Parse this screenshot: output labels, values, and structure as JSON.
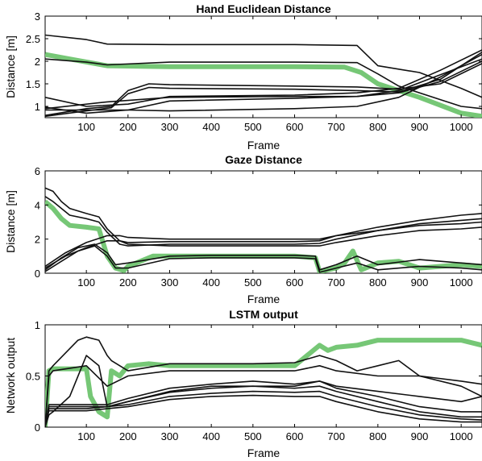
{
  "chart_data": [
    {
      "type": "line",
      "title": "Hand Euclidean Distance",
      "xlabel": "Frame",
      "ylabel": "Distance [m]",
      "xlim": [
        1,
        1050
      ],
      "ylim": [
        0.75,
        3
      ],
      "xticks": [
        100,
        200,
        300,
        400,
        500,
        600,
        700,
        800,
        900,
        1000
      ],
      "yticks": [
        1,
        1.5,
        2,
        2.5,
        3
      ],
      "ytick_labels": [
        "1",
        "1.5",
        "2",
        "2.5",
        "3"
      ],
      "grid": false,
      "highlight_color": "#76c776",
      "line_color": "#111111",
      "highlight": {
        "x": [
          1,
          60,
          150,
          300,
          600,
          720,
          760,
          800,
          900,
          1000,
          1050
        ],
        "y": [
          2.15,
          2.05,
          1.9,
          1.88,
          1.88,
          1.87,
          1.75,
          1.5,
          1.2,
          0.85,
          0.78
        ]
      },
      "series": [
        {
          "x": [
            1,
            100,
            150,
            300,
            600,
            750,
            800,
            900,
            1000,
            1050
          ],
          "y": [
            2.58,
            2.48,
            2.38,
            2.37,
            2.37,
            2.35,
            1.9,
            1.75,
            1.4,
            1.2
          ]
        },
        {
          "x": [
            1,
            100,
            150,
            300,
            600,
            750,
            800,
            850,
            950,
            1000,
            1050
          ],
          "y": [
            2.05,
            1.98,
            1.92,
            1.98,
            1.98,
            1.97,
            1.72,
            1.45,
            1.15,
            1.0,
            0.95
          ]
        },
        {
          "x": [
            1,
            100,
            160,
            200,
            250,
            300,
            600,
            750,
            850,
            950,
            1050
          ],
          "y": [
            0.8,
            0.95,
            1.0,
            1.35,
            1.5,
            1.48,
            1.45,
            1.43,
            1.38,
            1.5,
            1.95
          ]
        },
        {
          "x": [
            1,
            100,
            160,
            200,
            250,
            300,
            600,
            750,
            850,
            950,
            1050
          ],
          "y": [
            0.78,
            0.9,
            0.97,
            1.28,
            1.42,
            1.4,
            1.38,
            1.35,
            1.32,
            1.6,
            2.2
          ]
        },
        {
          "x": [
            1,
            100,
            200,
            300,
            600,
            750,
            850,
            950,
            1050
          ],
          "y": [
            1.2,
            1.0,
            1.05,
            1.22,
            1.25,
            1.3,
            1.4,
            1.8,
            2.25
          ]
        },
        {
          "x": [
            1,
            100,
            200,
            300,
            600,
            750,
            850,
            950,
            1050
          ],
          "y": [
            0.98,
            0.85,
            0.92,
            1.12,
            1.18,
            1.22,
            1.35,
            1.7,
            2.05
          ]
        },
        {
          "x": [
            1,
            150,
            300,
            600,
            750,
            850,
            950,
            1050
          ],
          "y": [
            0.95,
            1.1,
            1.2,
            1.22,
            1.22,
            1.3,
            1.55,
            2.0
          ]
        },
        {
          "x": [
            1,
            200,
            300,
            600,
            750,
            850,
            950,
            1050
          ],
          "y": [
            0.92,
            0.92,
            0.9,
            0.95,
            1.0,
            1.2,
            1.65,
            2.15
          ]
        }
      ]
    },
    {
      "type": "line",
      "title": "Gaze Distance",
      "xlabel": "Frame",
      "ylabel": "Distance [m]",
      "xlim": [
        1,
        1050
      ],
      "ylim": [
        0,
        6
      ],
      "xticks": [
        100,
        200,
        300,
        400,
        500,
        600,
        700,
        800,
        900,
        1000
      ],
      "yticks": [
        0,
        2,
        4,
        6
      ],
      "ytick_labels": [
        "0",
        "2",
        "4",
        "6"
      ],
      "grid": false,
      "highlight_color": "#76c776",
      "line_color": "#111111",
      "highlight": {
        "x": [
          1,
          20,
          40,
          60,
          100,
          130,
          150,
          170,
          190,
          200,
          230,
          260,
          300,
          400,
          500,
          600,
          650,
          660,
          700,
          720,
          740,
          760,
          800,
          850,
          900,
          1000,
          1050
        ],
        "y": [
          4.2,
          3.8,
          3.2,
          2.8,
          2.7,
          2.6,
          1.0,
          0.3,
          0.15,
          0.4,
          0.7,
          1.0,
          1.0,
          1.0,
          1.0,
          1.0,
          0.9,
          0.1,
          0.3,
          0.6,
          1.3,
          0.2,
          0.6,
          0.7,
          0.3,
          0.5,
          0.4
        ]
      },
      "series": [
        {
          "x": [
            1,
            20,
            40,
            60,
            100,
            130,
            150,
            180,
            200,
            300,
            400,
            500,
            600,
            660,
            700,
            800,
            900,
            1000,
            1050
          ],
          "y": [
            5.0,
            4.8,
            4.2,
            3.8,
            3.5,
            3.3,
            2.6,
            1.9,
            1.8,
            1.85,
            1.85,
            1.85,
            1.85,
            1.9,
            2.2,
            2.7,
            3.1,
            3.4,
            3.5
          ]
        },
        {
          "x": [
            1,
            20,
            40,
            60,
            100,
            130,
            150,
            180,
            200,
            300,
            400,
            500,
            600,
            660,
            700,
            800,
            900,
            1000,
            1050
          ],
          "y": [
            4.5,
            4.2,
            3.8,
            3.4,
            3.2,
            3.0,
            2.4,
            1.7,
            1.6,
            1.7,
            1.7,
            1.7,
            1.7,
            1.75,
            2.0,
            2.5,
            2.9,
            3.1,
            3.2
          ]
        },
        {
          "x": [
            1,
            50,
            100,
            150,
            180,
            200,
            300,
            400,
            500,
            600,
            660,
            700,
            800,
            900,
            1000,
            1050
          ],
          "y": [
            0.4,
            1.2,
            1.8,
            2.2,
            2.2,
            2.1,
            2.0,
            2.0,
            2.0,
            2.0,
            2.0,
            2.2,
            2.5,
            2.8,
            2.9,
            3.0
          ]
        },
        {
          "x": [
            1,
            50,
            100,
            150,
            180,
            200,
            300,
            400,
            500,
            600,
            660,
            700,
            800,
            900,
            1000,
            1050
          ],
          "y": [
            0.3,
            1.0,
            1.5,
            1.9,
            1.9,
            1.7,
            1.6,
            1.6,
            1.6,
            1.6,
            1.6,
            1.8,
            2.2,
            2.5,
            2.6,
            2.7
          ]
        },
        {
          "x": [
            1,
            40,
            80,
            120,
            150,
            170,
            200,
            300,
            400,
            500,
            600,
            650,
            660,
            700,
            750,
            800,
            900,
            1000,
            1050
          ],
          "y": [
            0.2,
            0.9,
            1.5,
            1.7,
            1.2,
            0.5,
            0.6,
            1.0,
            1.05,
            1.05,
            1.05,
            1.0,
            0.2,
            0.5,
            1.0,
            0.5,
            0.8,
            0.6,
            0.5
          ]
        },
        {
          "x": [
            1,
            40,
            80,
            120,
            150,
            170,
            200,
            300,
            400,
            500,
            600,
            650,
            660,
            700,
            750,
            800,
            900,
            1000,
            1050
          ],
          "y": [
            0.1,
            0.7,
            1.3,
            1.6,
            1.0,
            0.3,
            0.3,
            0.85,
            0.9,
            0.9,
            0.9,
            0.85,
            0.05,
            0.3,
            0.6,
            0.2,
            0.4,
            0.3,
            0.2
          ]
        }
      ]
    },
    {
      "type": "line",
      "title": "LSTM output",
      "xlabel": "Frame",
      "ylabel": "Network output",
      "xlim": [
        1,
        1050
      ],
      "ylim": [
        0,
        1
      ],
      "xticks": [
        100,
        200,
        300,
        400,
        500,
        600,
        700,
        800,
        900,
        1000
      ],
      "yticks": [
        0,
        0.5,
        1
      ],
      "ytick_labels": [
        "0",
        "0.5",
        "1"
      ],
      "grid": false,
      "highlight_color": "#76c776",
      "line_color": "#111111",
      "highlight": {
        "x": [
          1,
          10,
          20,
          100,
          110,
          130,
          150,
          160,
          180,
          200,
          250,
          300,
          400,
          500,
          600,
          660,
          680,
          700,
          750,
          800,
          900,
          1000,
          1050
        ],
        "y": [
          0,
          0.55,
          0.57,
          0.57,
          0.3,
          0.15,
          0.1,
          0.55,
          0.5,
          0.6,
          0.62,
          0.6,
          0.6,
          0.6,
          0.6,
          0.8,
          0.75,
          0.78,
          0.8,
          0.85,
          0.85,
          0.85,
          0.8
        ]
      },
      "series": [
        {
          "x": [
            1,
            10,
            20,
            80,
            100,
            130,
            150,
            160,
            200,
            300,
            400,
            500,
            600,
            660,
            700,
            750,
            800,
            850,
            900,
            1000,
            1050
          ],
          "y": [
            0,
            0.55,
            0.6,
            0.85,
            0.88,
            0.85,
            0.7,
            0.65,
            0.55,
            0.62,
            0.62,
            0.62,
            0.63,
            0.7,
            0.65,
            0.55,
            0.6,
            0.65,
            0.5,
            0.4,
            0.3
          ]
        },
        {
          "x": [
            1,
            10,
            20,
            100,
            150,
            200,
            300,
            400,
            500,
            600,
            660,
            700,
            800,
            900,
            1000,
            1050
          ],
          "y": [
            0,
            0.5,
            0.55,
            0.6,
            0.4,
            0.5,
            0.55,
            0.55,
            0.55,
            0.55,
            0.6,
            0.55,
            0.5,
            0.5,
            0.45,
            0.42
          ]
        },
        {
          "x": [
            1,
            10,
            20,
            60,
            100,
            130,
            150,
            200,
            300,
            400,
            500,
            600,
            660,
            700,
            800,
            900,
            1000,
            1050
          ],
          "y": [
            0,
            0.12,
            0.15,
            0.3,
            0.7,
            0.6,
            0.2,
            0.25,
            0.35,
            0.4,
            0.4,
            0.4,
            0.45,
            0.4,
            0.35,
            0.3,
            0.25,
            0.3
          ]
        },
        {
          "x": [
            1,
            10,
            100,
            150,
            200,
            300,
            400,
            500,
            600,
            660,
            700,
            800,
            900,
            1000,
            1050
          ],
          "y": [
            0,
            0.22,
            0.22,
            0.22,
            0.28,
            0.38,
            0.42,
            0.45,
            0.42,
            0.45,
            0.38,
            0.3,
            0.2,
            0.15,
            0.15
          ]
        },
        {
          "x": [
            1,
            10,
            100,
            150,
            200,
            300,
            400,
            500,
            600,
            660,
            700,
            800,
            900,
            1000,
            1050
          ],
          "y": [
            0,
            0.2,
            0.2,
            0.2,
            0.25,
            0.34,
            0.38,
            0.4,
            0.38,
            0.4,
            0.35,
            0.25,
            0.15,
            0.1,
            0.1
          ]
        },
        {
          "x": [
            1,
            10,
            100,
            150,
            200,
            300,
            400,
            500,
            600,
            660,
            700,
            800,
            900,
            1000,
            1050
          ],
          "y": [
            0,
            0.18,
            0.18,
            0.2,
            0.22,
            0.3,
            0.33,
            0.35,
            0.34,
            0.35,
            0.3,
            0.2,
            0.12,
            0.08,
            0.07
          ]
        },
        {
          "x": [
            1,
            10,
            100,
            150,
            200,
            300,
            400,
            500,
            600,
            660,
            700,
            800,
            900,
            1000,
            1050
          ],
          "y": [
            0,
            0.16,
            0.16,
            0.18,
            0.2,
            0.27,
            0.3,
            0.31,
            0.3,
            0.3,
            0.25,
            0.15,
            0.08,
            0.05,
            0.05
          ]
        }
      ]
    }
  ]
}
